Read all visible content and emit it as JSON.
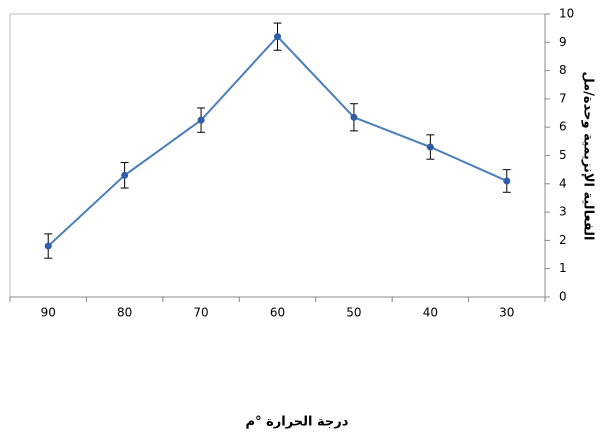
{
  "chart_data": {
    "type": "line",
    "x_label": "درجة الحرارة °م",
    "y_label": "الفعالية الإنزيمية وحدة/مل",
    "categories": [
      "90",
      "80",
      "70",
      "60",
      "50",
      "40",
      "30"
    ],
    "series": [
      {
        "color": "#4a7ebb",
        "values": [
          1.8,
          4.3,
          6.25,
          9.2,
          6.35,
          5.3,
          4.1
        ],
        "errors": [
          0.43,
          0.45,
          0.43,
          0.48,
          0.48,
          0.43,
          0.4
        ]
      }
    ],
    "ylim": [
      0,
      10
    ],
    "yticks": [
      0,
      1,
      2,
      3,
      4,
      5,
      6,
      7,
      8,
      9,
      10
    ],
    "y_axis_side": "right",
    "grid": false
  }
}
